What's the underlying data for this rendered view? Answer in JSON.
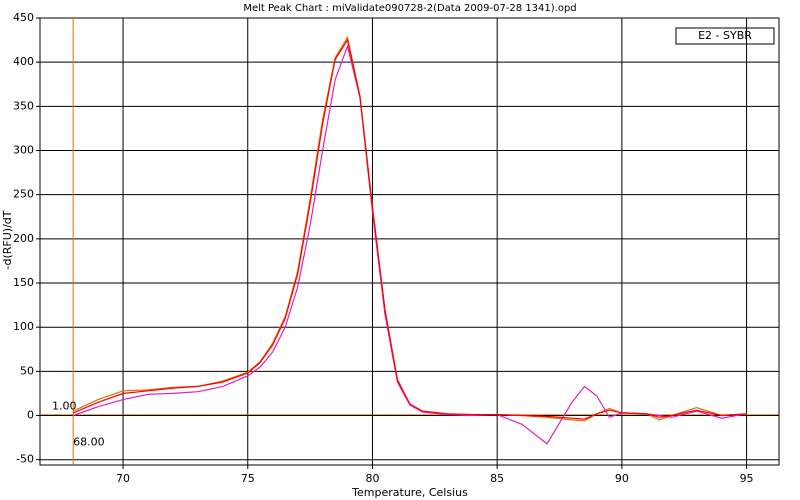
{
  "chart_data": {
    "type": "line",
    "title": "Melt Peak Chart : miValidate090728-2(Data 2009-07-28 1341).opd",
    "x_label": "Temperature, Celsius",
    "y_label": "-d(RFU)/dT",
    "legend_label": "E2 - SYBR",
    "x": [
      68,
      69,
      70,
      71,
      72,
      73,
      74,
      75,
      75.5,
      76,
      76.5,
      77,
      77.5,
      78,
      78.5,
      79,
      79.5,
      80,
      80.5,
      81,
      81.5,
      82,
      83,
      84,
      85,
      86,
      87,
      88,
      88.5,
      89,
      89.5,
      90,
      91,
      91.5,
      92,
      93,
      94,
      95
    ],
    "series": [
      {
        "color": "#e07000",
        "values": [
          5,
          18,
          28,
          29,
          32,
          33,
          39,
          49,
          61,
          82,
          112,
          163,
          245,
          335,
          405,
          428,
          362,
          236,
          120,
          41,
          13,
          5,
          2,
          1,
          1,
          0,
          -2,
          -5,
          -6,
          2,
          8,
          3,
          2,
          -5,
          0,
          9,
          0,
          2
        ]
      },
      {
        "color": "#e020c0",
        "values": [
          0,
          10,
          18,
          24,
          25,
          27,
          33,
          45,
          55,
          72,
          100,
          145,
          215,
          300,
          380,
          418,
          360,
          230,
          115,
          38,
          12,
          4,
          1,
          0,
          1,
          -10,
          -32,
          15,
          33,
          22,
          -2,
          3,
          2,
          0,
          -2,
          5,
          -3,
          2
        ]
      },
      {
        "color": "#ff0000",
        "values": [
          3,
          15,
          25,
          28,
          31,
          33,
          38,
          48,
          60,
          80,
          110,
          160,
          240,
          330,
          403,
          425,
          360,
          235,
          120,
          40,
          13,
          5,
          2,
          1,
          1,
          0,
          -1,
          -3,
          -4,
          2,
          6,
          3,
          2,
          -2,
          0,
          6,
          0,
          2
        ]
      }
    ],
    "xlim": [
      66.67,
      96.3
    ],
    "ylim": [
      -56,
      450
    ],
    "xticks": [
      70,
      75,
      80,
      85,
      90,
      95
    ],
    "yticks": [
      -50,
      0,
      50,
      100,
      150,
      200,
      250,
      300,
      350,
      400,
      450
    ],
    "grid": true,
    "threshold_x": {
      "value": 68,
      "label": "68.00"
    },
    "threshold_y": {
      "value": 1,
      "label": "1.00"
    }
  }
}
